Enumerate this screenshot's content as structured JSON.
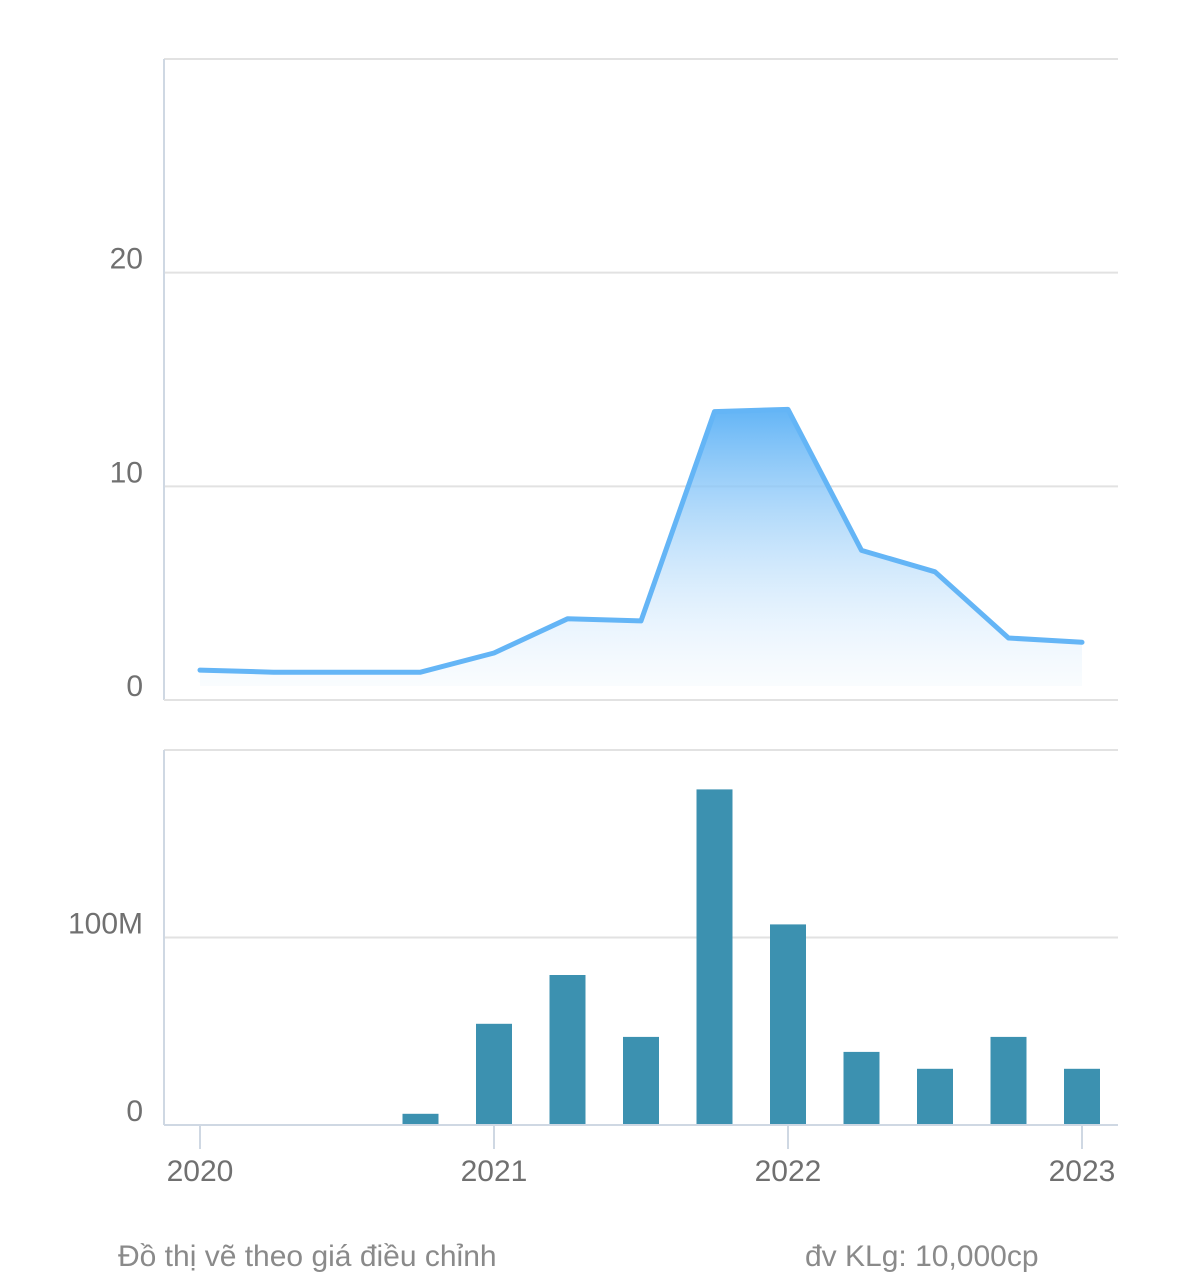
{
  "chart_data": [
    {
      "type": "area",
      "title": "",
      "xlabel": "",
      "ylabel": "",
      "x": [
        2020.0,
        2020.25,
        2020.5,
        2020.75,
        2021.0,
        2021.25,
        2021.5,
        2021.75,
        2022.0,
        2022.25,
        2022.5,
        2022.75,
        2023.0
      ],
      "series": [
        {
          "values": [
            1.4,
            1.3,
            1.3,
            1.3,
            2.2,
            3.8,
            3.7,
            13.5,
            13.6,
            7.0,
            6.0,
            2.9,
            2.7
          ]
        }
      ],
      "ylim": [
        0,
        30
      ],
      "yticks": [
        0,
        10,
        20
      ],
      "ytick_labels": [
        "0",
        "10",
        "20"
      ],
      "grid": true,
      "colors": {
        "line": "#64b5f6",
        "fill_top": "#64b5f6",
        "fill_bottom": "#ffffff"
      }
    },
    {
      "type": "bar",
      "title": "",
      "xlabel": "",
      "ylabel": "",
      "x": [
        2020.75,
        2021.0,
        2021.25,
        2021.5,
        2021.75,
        2022.0,
        2022.25,
        2022.5,
        2022.75,
        2023.0
      ],
      "values": [
        6,
        54,
        80,
        47,
        179,
        107,
        39,
        30,
        47,
        30
      ],
      "ylim": [
        0,
        200
      ],
      "yticks": [
        0,
        100
      ],
      "ytick_labels": [
        "0",
        "100M"
      ],
      "grid": true,
      "colors": {
        "bar": "#3c91b0"
      }
    }
  ],
  "x_axis": {
    "ticks": [
      2020,
      2021,
      2022,
      2023
    ],
    "tick_labels": [
      "2020",
      "2021",
      "2022",
      "2023"
    ]
  },
  "footer": {
    "note_left": "Đồ thị vẽ theo giá điều chỉnh",
    "note_right": "đv KLg: 10,000cp"
  }
}
